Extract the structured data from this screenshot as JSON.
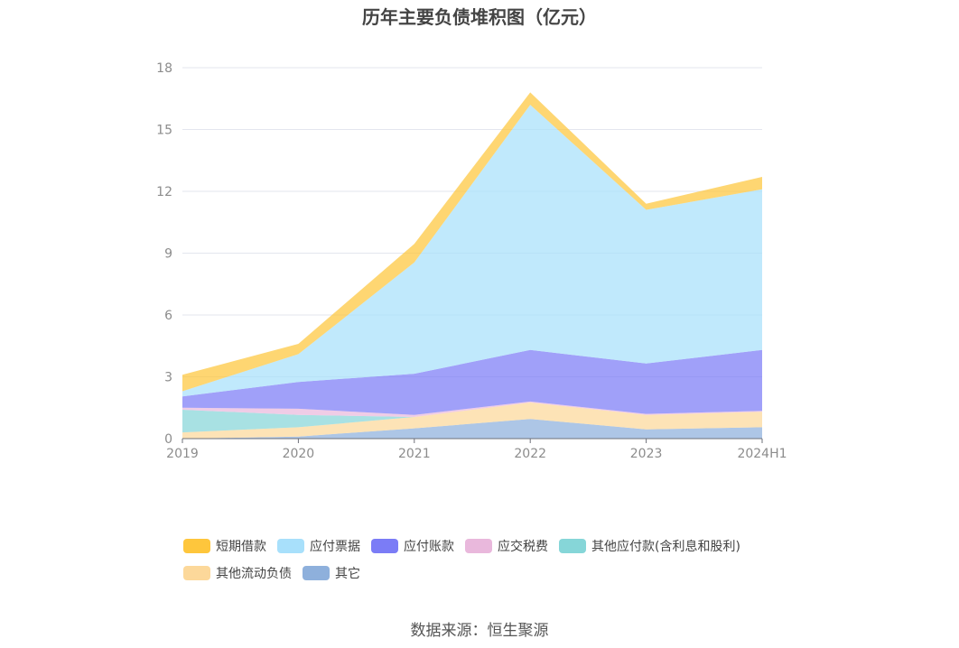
{
  "chart_data": {
    "type": "area",
    "stacked": true,
    "title": "历年主要负债堆积图（亿元）",
    "categories": [
      "2019",
      "2020",
      "2021",
      "2022",
      "2023",
      "2024H1"
    ],
    "yticks": [
      "0",
      "3",
      "6",
      "9",
      "12",
      "15",
      "18"
    ],
    "ylim": [
      0,
      18
    ],
    "grid": true,
    "legend_position": "bottom",
    "series": [
      {
        "name": "其它",
        "color": "#8eb0dc",
        "values": [
          0.0,
          0.1,
          0.5,
          0.95,
          0.45,
          0.55
        ]
      },
      {
        "name": "其他流动负债",
        "color": "#fcd89a",
        "values": [
          0.3,
          0.45,
          0.55,
          0.8,
          0.7,
          0.75
        ]
      },
      {
        "name": "其他应付款(含利息和股利)",
        "color": "#86d6d8",
        "values": [
          1.1,
          0.6,
          0.0,
          0.0,
          0.0,
          0.0
        ]
      },
      {
        "name": "应交税费",
        "color": "#e9b8dc",
        "values": [
          0.1,
          0.3,
          0.1,
          0.05,
          0.05,
          0.05
        ]
      },
      {
        "name": "应付账款",
        "color": "#7b7cf6",
        "values": [
          0.55,
          1.3,
          2.0,
          2.5,
          2.45,
          2.95
        ]
      },
      {
        "name": "应付票据",
        "color": "#a8e0fb",
        "values": [
          0.25,
          1.35,
          5.4,
          11.9,
          7.45,
          7.8
        ]
      },
      {
        "name": "短期借款",
        "color": "#fec63c",
        "values": [
          0.8,
          0.5,
          0.9,
          0.6,
          0.3,
          0.6
        ]
      }
    ],
    "legend_order": [
      "短期借款",
      "应付票据",
      "应付账款",
      "应交税费",
      "其他应付款(含利息和股利)",
      "其他流动负债",
      "其它"
    ]
  },
  "source": "数据来源：恒生聚源"
}
